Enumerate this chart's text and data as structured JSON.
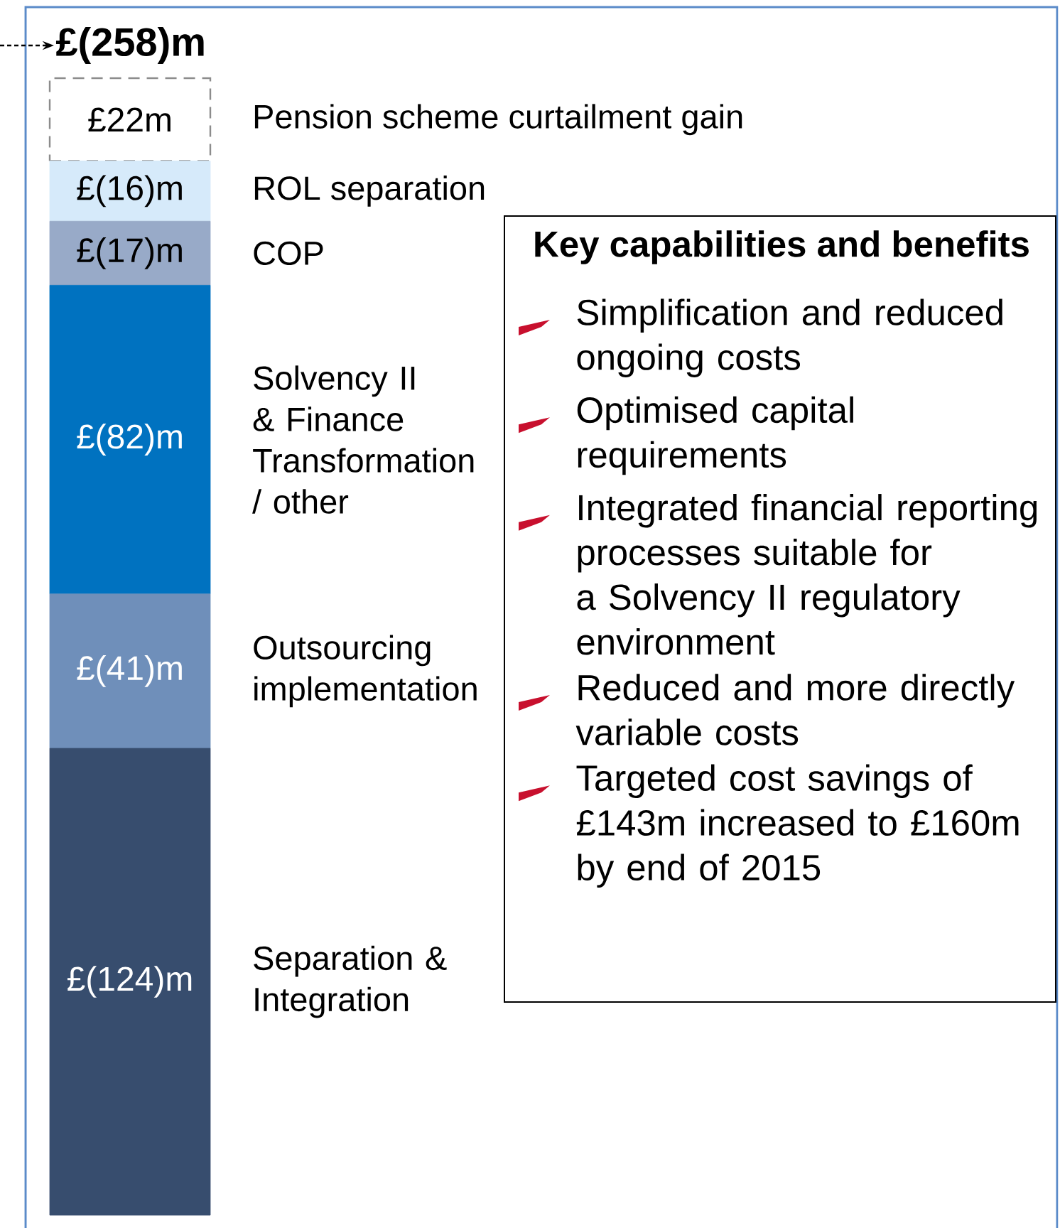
{
  "chart_data": [
    {
      "type": "bar",
      "stacked": true,
      "categories": [
        null
      ],
      "annotations": [
        "£(258)m"
      ],
      "series": [
        {
          "name": "Separation & Integration",
          "color": "#374d6e",
          "values": [
            124
          ],
          "value_labels": [
            "£(124)m"
          ]
        },
        {
          "name": "Outsourcing implementation",
          "color": "#6f8fba",
          "values": [
            41
          ],
          "value_labels": [
            "£(41)m"
          ]
        },
        {
          "name": "Solvency II & Finance Transformation / other",
          "color": "#0072c0",
          "values": [
            82
          ],
          "value_labels": [
            "£(82)m"
          ]
        },
        {
          "name": "COP",
          "color": "#98aac8",
          "values": [
            17
          ],
          "value_labels": [
            "£(17)m"
          ]
        },
        {
          "name": "ROL separation",
          "color": "#d6eafa",
          "values": [
            16
          ],
          "value_labels": [
            "£(16)m"
          ]
        },
        {
          "name": "Pension scheme curtailment gain",
          "color": "#ffffff",
          "line_style": "dashed",
          "values": [
            22
          ],
          "value_labels": [
            "£22m"
          ]
        }
      ]
    },
    {
      "type": "other",
      "title": "Key capabilities and benefits",
      "annotations": [
        "Simplification and reduced ongoing costs",
        "Optimised capital requirements",
        "Integrated financial reporting processes suitable for a Solvency II regulatory environment",
        "Reduced and more directly variable costs",
        "Targeted cost savings of £143m increased to £160m by end of 2015"
      ]
    }
  ]
}
